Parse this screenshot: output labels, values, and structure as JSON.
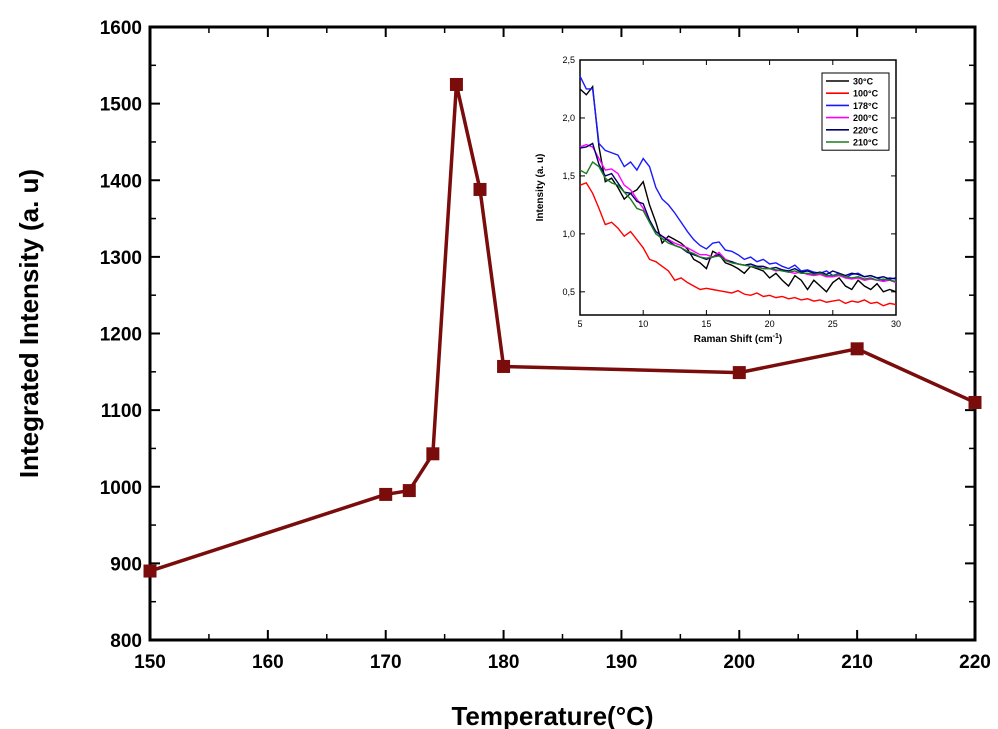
{
  "chart_data": [
    {
      "type": "line",
      "title": "",
      "xlabel": "Temperature(°C)",
      "ylabel": "Integrated Intensity (a. u)",
      "xlim": [
        150,
        220
      ],
      "ylim": [
        800,
        1600
      ],
      "xticks": [
        150,
        160,
        170,
        180,
        190,
        200,
        210,
        220
      ],
      "yticks": [
        800,
        900,
        1000,
        1100,
        1200,
        1300,
        1400,
        1500,
        1600
      ],
      "grid": false,
      "marker": "square",
      "color": "#7a0c0c",
      "series": [
        {
          "x": [
            150,
            170,
            172,
            174,
            176,
            178,
            180,
            200,
            210,
            220
          ],
          "y": [
            890,
            990,
            995,
            1043,
            1525,
            1388,
            1157,
            1149,
            1180,
            1110
          ]
        }
      ]
    },
    {
      "type": "line",
      "title": "",
      "xlabel": "Raman Shift (cm",
      "xlabel_sup": "-1",
      "xlabel_suffix": ")",
      "ylabel": "Intensity (a. u)",
      "xlim": [
        5,
        30
      ],
      "ylim": [
        0.3,
        2.5
      ],
      "xticks": [
        "5",
        "10",
        "15",
        "20",
        "25",
        "30"
      ],
      "yticks": [
        "0,5",
        "1,0",
        "1,5",
        "2,0",
        "2,5"
      ],
      "grid": false,
      "legend_position": "top-right",
      "x": [
        5,
        5.5,
        6,
        6.5,
        7,
        7.5,
        8,
        8.5,
        9,
        9.5,
        10,
        10.5,
        11,
        11.5,
        12,
        12.5,
        13,
        13.5,
        14,
        14.5,
        15,
        15.5,
        16,
        16.5,
        17,
        17.5,
        18,
        18.5,
        19,
        19.5,
        20,
        20.5,
        21,
        21.5,
        22,
        22.5,
        23,
        23.5,
        24,
        24.5,
        25,
        25.5,
        26,
        26.5,
        27,
        27.5,
        28,
        28.5,
        29,
        29.5,
        30
      ],
      "series": [
        {
          "name": "30°C",
          "color": "#000000",
          "values": [
            2.25,
            2.2,
            2.27,
            1.75,
            1.45,
            1.48,
            1.4,
            1.3,
            1.35,
            1.38,
            1.45,
            1.25,
            1.1,
            0.92,
            0.98,
            0.95,
            0.92,
            0.87,
            0.78,
            0.75,
            0.7,
            0.85,
            0.82,
            0.75,
            0.73,
            0.7,
            0.66,
            0.72,
            0.7,
            0.68,
            0.62,
            0.66,
            0.6,
            0.55,
            0.64,
            0.6,
            0.52,
            0.6,
            0.55,
            0.5,
            0.58,
            0.62,
            0.55,
            0.52,
            0.6,
            0.55,
            0.52,
            0.57,
            0.5,
            0.52,
            0.5
          ]
        },
        {
          "name": "100°C",
          "color": "#ff0000",
          "values": [
            1.42,
            1.44,
            1.35,
            1.22,
            1.08,
            1.1,
            1.05,
            0.98,
            1.02,
            0.95,
            0.88,
            0.78,
            0.76,
            0.72,
            0.68,
            0.6,
            0.62,
            0.58,
            0.55,
            0.52,
            0.53,
            0.52,
            0.51,
            0.5,
            0.49,
            0.51,
            0.48,
            0.47,
            0.49,
            0.46,
            0.47,
            0.45,
            0.46,
            0.44,
            0.45,
            0.43,
            0.44,
            0.42,
            0.43,
            0.41,
            0.42,
            0.43,
            0.4,
            0.42,
            0.41,
            0.43,
            0.4,
            0.41,
            0.38,
            0.4,
            0.39
          ]
        },
        {
          "name": "178°C",
          "color": "#1a1aff",
          "values": [
            2.36,
            2.25,
            2.25,
            1.78,
            1.72,
            1.7,
            1.68,
            1.58,
            1.62,
            1.55,
            1.65,
            1.58,
            1.4,
            1.3,
            1.25,
            1.18,
            1.1,
            1.02,
            0.95,
            0.9,
            0.87,
            0.92,
            0.93,
            0.86,
            0.85,
            0.82,
            0.78,
            0.8,
            0.76,
            0.78,
            0.74,
            0.75,
            0.72,
            0.7,
            0.73,
            0.68,
            0.69,
            0.67,
            0.66,
            0.68,
            0.64,
            0.66,
            0.62,
            0.65,
            0.66,
            0.63,
            0.64,
            0.62,
            0.6,
            0.62,
            0.61
          ]
        },
        {
          "name": "200°C",
          "color": "#ff00ff",
          "values": [
            1.75,
            1.77,
            1.75,
            1.65,
            1.55,
            1.56,
            1.52,
            1.42,
            1.38,
            1.3,
            1.22,
            1.1,
            1.02,
            0.98,
            0.95,
            0.92,
            0.9,
            0.88,
            0.85,
            0.82,
            0.82,
            0.8,
            0.84,
            0.78,
            0.76,
            0.74,
            0.73,
            0.72,
            0.72,
            0.7,
            0.7,
            0.68,
            0.69,
            0.67,
            0.66,
            0.67,
            0.65,
            0.64,
            0.65,
            0.63,
            0.63,
            0.64,
            0.62,
            0.61,
            0.62,
            0.6,
            0.61,
            0.6,
            0.59,
            0.6,
            0.58
          ]
        },
        {
          "name": "220°C",
          "color": "#00006b",
          "values": [
            1.74,
            1.75,
            1.78,
            1.6,
            1.5,
            1.52,
            1.44,
            1.36,
            1.35,
            1.28,
            1.26,
            1.12,
            1.02,
            0.98,
            0.94,
            0.9,
            0.88,
            0.84,
            0.82,
            0.8,
            0.78,
            0.8,
            0.82,
            0.77,
            0.76,
            0.74,
            0.73,
            0.74,
            0.72,
            0.72,
            0.7,
            0.71,
            0.69,
            0.68,
            0.7,
            0.67,
            0.68,
            0.66,
            0.67,
            0.65,
            0.68,
            0.66,
            0.64,
            0.66,
            0.65,
            0.63,
            0.64,
            0.62,
            0.63,
            0.61,
            0.62
          ]
        },
        {
          "name": "210°C",
          "color": "#1e7a1e",
          "values": [
            1.55,
            1.52,
            1.62,
            1.58,
            1.48,
            1.44,
            1.42,
            1.36,
            1.3,
            1.22,
            1.2,
            1.1,
            1.0,
            0.96,
            0.92,
            0.9,
            0.88,
            0.85,
            0.83,
            0.8,
            0.79,
            0.8,
            0.81,
            0.77,
            0.75,
            0.74,
            0.73,
            0.72,
            0.71,
            0.7,
            0.7,
            0.69,
            0.68,
            0.67,
            0.68,
            0.66,
            0.66,
            0.65,
            0.66,
            0.64,
            0.64,
            0.65,
            0.63,
            0.62,
            0.63,
            0.61,
            0.62,
            0.6,
            0.61,
            0.6,
            0.59
          ]
        }
      ]
    }
  ]
}
